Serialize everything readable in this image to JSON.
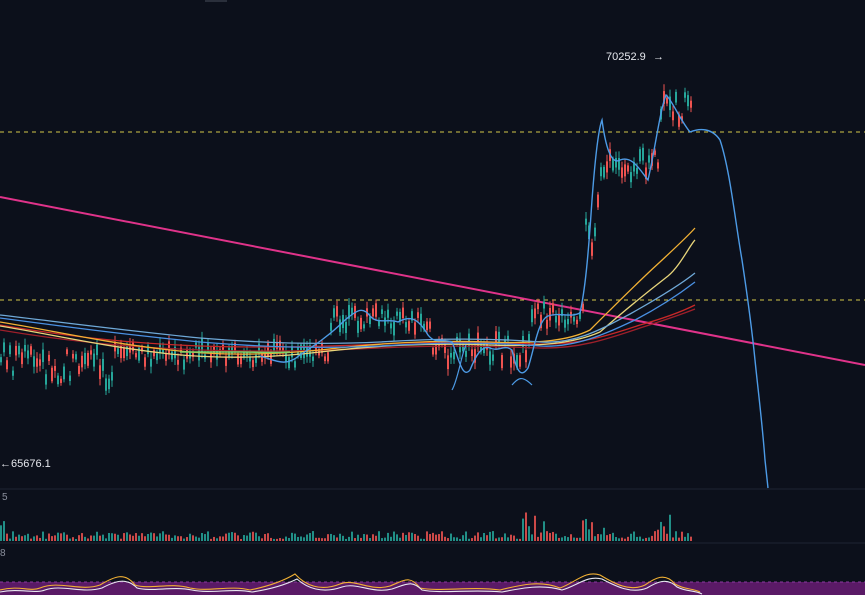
{
  "chart_data": {
    "type": "candlestick",
    "annotations": {
      "high_label": "70252.9",
      "low_label": "65676.1",
      "volume_pane_label": "5",
      "oscillator_pane_label": "8"
    },
    "colors": {
      "up": "#26a69a",
      "down": "#ef5350",
      "ema_fast": "#f2b134",
      "ema_mid": "#e8d57a",
      "ema_slow": "#c62828",
      "ema_blue": "#4a90e2",
      "trendline": "#e0338a",
      "dotted_level": "#d4c94a",
      "oscillator_band": "#5a1a66"
    }
  }
}
